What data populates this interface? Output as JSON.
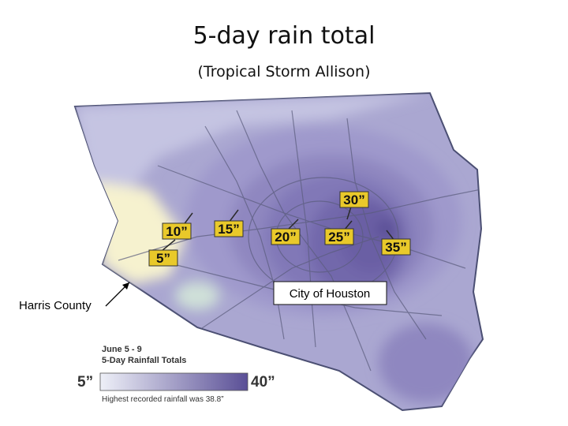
{
  "slide": {
    "title": "5-day rain total",
    "subtitle": "(Tropical Storm Allison)"
  },
  "labels": {
    "county": "Harris County",
    "city": "City of Houston"
  },
  "rain_markers": [
    "5”",
    "10”",
    "15”",
    "20”",
    "25”",
    "30”",
    "35”"
  ],
  "legend": {
    "title_line1": "June 5 - 9",
    "title_line2": "5-Day Rainfall Totals",
    "min_label": "5”",
    "max_label": "40”",
    "note": "Highest recorded rainfall was 38.8”",
    "color_low": "#eef0f8",
    "color_high": "#5a4f96"
  },
  "colors": {
    "marker_fill": "#e9c92a",
    "map_base": "#a9a6d0",
    "low_rain": "#f6f2cf",
    "high_rain": "#6f62a8"
  }
}
